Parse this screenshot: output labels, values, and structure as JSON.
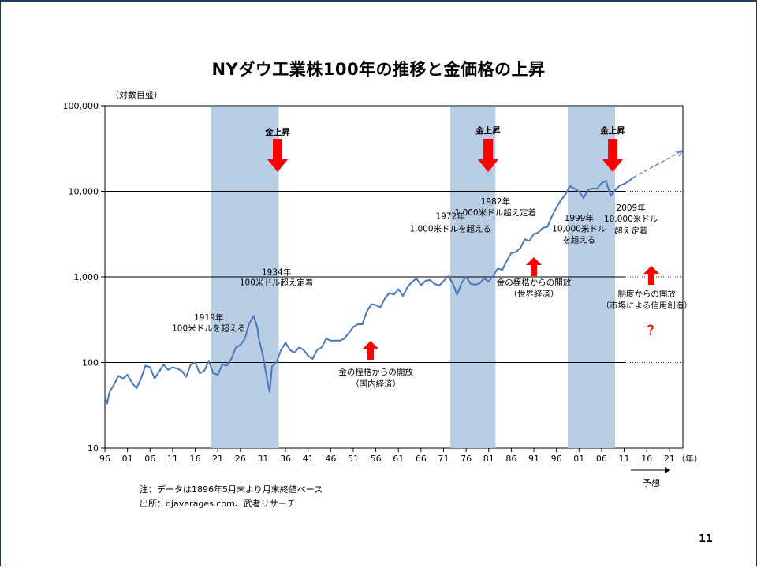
{
  "slide": {
    "title": "NYダウ工業株100年の推移と金価格の上昇",
    "page_number": "11",
    "note1": "注：データは1896年5月末より月末終値ベース",
    "note2": "出所：djaverages.com、武者リサーチ"
  },
  "chart_data": {
    "type": "line",
    "title": "NYダウ工業株100年の推移と金価格の上昇",
    "ylabel": "（対数目盛）",
    "xlabel": "（年）",
    "forecast_label": "予想",
    "y_scale": "log",
    "ylim": [
      10,
      100000
    ],
    "xlim": [
      1896,
      2024
    ],
    "y_ticks": [
      "100,000",
      "10,000",
      "1,000",
      "100",
      "10"
    ],
    "y_tick_values": [
      100000,
      10000,
      1000,
      100,
      10
    ],
    "x_ticks": [
      "96",
      "01",
      "06",
      "11",
      "16",
      "21",
      "26",
      "31",
      "36",
      "41",
      "46",
      "51",
      "56",
      "61",
      "66",
      "71",
      "76",
      "81",
      "86",
      "91",
      "96",
      "01",
      "06",
      "11",
      "16",
      "21"
    ],
    "x_tick_values": [
      1896,
      1901,
      1906,
      1911,
      1916,
      1921,
      1926,
      1931,
      1936,
      1941,
      1946,
      1951,
      1956,
      1961,
      1966,
      1971,
      1976,
      1981,
      1986,
      1991,
      1996,
      2001,
      2006,
      2011,
      2016,
      2021
    ],
    "grid_lines": [
      100,
      1000,
      10000
    ],
    "shaded_periods": [
      [
        1919.5,
        1934.5
      ],
      [
        1972.5,
        1982.5
      ],
      [
        1998.5,
        2009.0
      ]
    ],
    "series": [
      {
        "x": [
          1896,
          1896.5,
          1897,
          1898,
          1899,
          1900,
          1901,
          1902,
          1903,
          1904,
          1905,
          1906,
          1907,
          1908,
          1909,
          1910,
          1911,
          1912,
          1913,
          1914,
          1915,
          1916,
          1917,
          1918,
          1919,
          1920,
          1921,
          1922,
          1923,
          1924,
          1925,
          1926,
          1927,
          1928,
          1929,
          1929.8,
          1930,
          1931,
          1932,
          1932.5,
          1933,
          1934,
          1935,
          1936,
          1937,
          1938,
          1939,
          1940,
          1941,
          1942,
          1943,
          1944,
          1945,
          1946,
          1947,
          1948,
          1949,
          1950,
          1951,
          1952,
          1953,
          1954,
          1955,
          1956,
          1957,
          1958,
          1959,
          1960,
          1961,
          1962,
          1963,
          1964,
          1965,
          1966,
          1967,
          1968,
          1969,
          1970,
          1971,
          1972,
          1973,
          1974,
          1975,
          1976,
          1977,
          1978,
          1979,
          1980,
          1981,
          1982,
          1983,
          1984,
          1985,
          1986,
          1987,
          1988,
          1989,
          1990,
          1991,
          1992,
          1993,
          1994,
          1995,
          1996,
          1997,
          1998,
          1999,
          2000,
          2001,
          2002,
          2003,
          2004,
          2005,
          2006,
          2007,
          2008,
          2009,
          2010,
          2011,
          2012,
          2013
        ],
        "values": [
          40,
          33,
          45,
          55,
          70,
          65,
          72,
          58,
          50,
          65,
          92,
          88,
          65,
          78,
          95,
          82,
          88,
          85,
          80,
          68,
          95,
          100,
          75,
          80,
          105,
          75,
          72,
          95,
          92,
          110,
          150,
          160,
          190,
          290,
          350,
          250,
          200,
          120,
          60,
          45,
          90,
          100,
          140,
          170,
          140,
          130,
          150,
          140,
          120,
          110,
          140,
          150,
          190,
          180,
          180,
          180,
          190,
          220,
          260,
          280,
          280,
          390,
          480,
          470,
          440,
          560,
          650,
          620,
          720,
          600,
          760,
          870,
          960,
          800,
          900,
          920,
          830,
          790,
          890,
          1020,
          850,
          620,
          850,
          1000,
          830,
          810,
          840,
          960,
          880,
          1040,
          1250,
          1210,
          1540,
          1900,
          1950,
          2170,
          2750,
          2630,
          3170,
          3300,
          3750,
          3830,
          5100,
          6450,
          7900,
          9180,
          11500,
          10700,
          10000,
          8300,
          10400,
          10800,
          10700,
          12400,
          13300,
          8800,
          10400,
          11600,
          12200,
          13100,
          14500
        ]
      }
    ],
    "forecast": {
      "x": [
        2013,
        2024
      ],
      "values": [
        14500,
        30000
      ]
    },
    "annotations": [
      {
        "text": "1919年",
        "x": 1919,
        "y": 340
      },
      {
        "text": "100米ドルを超える",
        "x": 1919,
        "y": 255
      },
      {
        "text": "1934年",
        "x": 1934,
        "y": 1150
      },
      {
        "text": "100米ドル超え定着",
        "x": 1934,
        "y": 870
      },
      {
        "text": "1972年",
        "x": 1972.5,
        "y": 5200
      },
      {
        "text": "1,000米ドルを超える",
        "x": 1972.5,
        "y": 3700
      },
      {
        "text": "1982年",
        "x": 1982.5,
        "y": 7700
      },
      {
        "text": "1,000米ドル超え定着",
        "x": 1982.5,
        "y": 5700
      },
      {
        "text": "1999年",
        "x": 2001,
        "y": 4900
      },
      {
        "text": "10,000米ドル",
        "x": 2001,
        "y": 3700
      },
      {
        "text": "を超える",
        "x": 2001,
        "y": 2750
      },
      {
        "text": "2009年",
        "x": 2012.5,
        "y": 6500
      },
      {
        "text": "10,000米ドル",
        "x": 2012.5,
        "y": 4800
      },
      {
        "text": "超え定着",
        "x": 2012.5,
        "y": 3500
      },
      {
        "text": "金の桎梏からの開放",
        "x": 1956,
        "y": 78
      },
      {
        "text": "（国内経済）",
        "x": 1956,
        "y": 57
      },
      {
        "text": "金の桎梏からの開放",
        "x": 1991,
        "y": 870
      },
      {
        "text": "（世界経済）",
        "x": 1991,
        "y": 640
      },
      {
        "text": "制度からの開放",
        "x": 2016,
        "y": 640
      },
      {
        "text": "（市場による信用創造）",
        "x": 2016,
        "y": 470
      }
    ],
    "gold_labels": [
      "金上昇",
      "金上昇",
      "金上昇"
    ],
    "question_mark": "？"
  },
  "colors": {
    "line": "#4a78b8",
    "shade": "#b8cce4",
    "arrow": "#ff0000",
    "grid": "#000000"
  }
}
